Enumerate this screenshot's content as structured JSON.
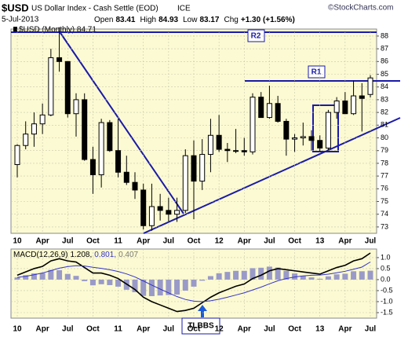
{
  "chart_data": [
    {
      "type": "candlestick",
      "title": "$USD",
      "subtitle": "US Dollar Index - Cash Settle (EOD)",
      "exchange": "ICE",
      "source": "©StockCharts.com",
      "date": "5-Jul-2013",
      "stats": [
        {
          "label": "Open",
          "value": "83.41"
        },
        {
          "label": "High",
          "value": "84.93"
        },
        {
          "label": "Low",
          "value": "83.17"
        },
        {
          "label": "Chg",
          "value": "+1.30 (+1.56%)"
        }
      ],
      "legend": "$USD (Monthly) 84.71",
      "annotations": [
        "R2",
        "R1"
      ],
      "categories": [
        "10",
        null,
        null,
        "Apr",
        null,
        null,
        "Jul",
        null,
        null,
        "Oct",
        null,
        null,
        "11",
        null,
        null,
        "Apr",
        null,
        null,
        "Jul",
        null,
        null,
        "Oct",
        null,
        null,
        "12",
        null,
        null,
        "Apr",
        null,
        null,
        "Jul",
        null,
        null,
        "Oct",
        null,
        null,
        "13",
        null,
        null,
        "Apr",
        null,
        null,
        "Jul"
      ],
      "open": [
        77.9,
        79.4,
        80.3,
        81.1,
        81.8,
        86.3,
        86.0,
        81.9,
        83.0,
        78.3,
        77.1,
        81.2,
        79.0,
        77.3,
        76.5,
        75.9,
        73.1,
        74.6,
        74.3,
        74.0,
        74.3,
        78.6,
        76.6,
        78.7,
        80.2,
        79.1,
        79.0,
        79.0,
        78.9,
        83.2,
        81.6,
        82.7,
        81.3,
        79.9,
        80.0,
        80.1,
        79.8,
        79.2,
        82.0,
        82.9,
        81.9,
        83.3,
        83.41
      ],
      "high": [
        79.5,
        81.3,
        82.0,
        82.7,
        87.0,
        88.7,
        86.0,
        83.5,
        83.5,
        79.3,
        81.5,
        81.4,
        81.5,
        78.6,
        77.3,
        76.4,
        76.4,
        75.6,
        75.3,
        75.3,
        79.1,
        79.8,
        79.9,
        81.5,
        81.8,
        79.6,
        80.7,
        80.0,
        83.5,
        83.6,
        84.1,
        83.3,
        81.5,
        80.3,
        81.2,
        80.6,
        80.2,
        82.2,
        83.2,
        83.6,
        84.5,
        84.3,
        84.93
      ],
      "low": [
        76.9,
        79.1,
        79.3,
        80.3,
        81.7,
        85.2,
        81.6,
        80.1,
        78.2,
        75.6,
        76.1,
        78.9,
        76.9,
        76.3,
        75.2,
        72.8,
        72.7,
        73.5,
        73.4,
        73.4,
        74.1,
        73.6,
        75.9,
        77.3,
        78.9,
        78.1,
        78.8,
        78.6,
        78.7,
        81.6,
        81.5,
        81.2,
        78.6,
        78.9,
        79.4,
        79.0,
        78.9,
        79.0,
        81.5,
        81.9,
        81.8,
        80.5,
        83.17
      ],
      "close": [
        79.4,
        80.3,
        81.1,
        81.8,
        86.3,
        86.0,
        81.9,
        83.0,
        78.3,
        77.1,
        81.2,
        79.0,
        77.3,
        76.5,
        75.9,
        73.1,
        74.6,
        74.3,
        74.0,
        74.3,
        78.6,
        76.6,
        78.7,
        80.2,
        79.1,
        79.0,
        79.0,
        78.9,
        83.2,
        81.6,
        82.7,
        81.3,
        79.9,
        80.0,
        80.1,
        79.8,
        79.2,
        82.0,
        82.9,
        81.9,
        83.3,
        83.1,
        84.71
      ],
      "ylim": [
        72.5,
        88.55
      ],
      "yticks": [
        73,
        74,
        75,
        76,
        77,
        78,
        79,
        80,
        81,
        82,
        83,
        84,
        85,
        86,
        87,
        88
      ],
      "grid": true
    },
    {
      "type": "macd",
      "legend": {
        "label": "MACD(12,26,9)",
        "items": [
          "1.208,",
          "0.801,",
          "0.407"
        ]
      },
      "annotations": [
        "TLBBS"
      ],
      "series": [
        {
          "name": "MACD",
          "color": "#000000",
          "values": [
            0.2,
            0.35,
            0.5,
            0.6,
            0.85,
            0.95,
            0.85,
            0.8,
            0.55,
            0.3,
            0.3,
            0.2,
            0.05,
            -0.2,
            -0.45,
            -0.8,
            -1.0,
            -1.15,
            -1.3,
            -1.45,
            -1.4,
            -1.3,
            -1.05,
            -0.8,
            -0.6,
            -0.45,
            -0.3,
            -0.2,
            0.05,
            0.2,
            0.4,
            0.5,
            0.45,
            0.4,
            0.35,
            0.3,
            0.25,
            0.4,
            0.55,
            0.65,
            0.85,
            0.95,
            1.208
          ]
        },
        {
          "name": "Signal",
          "color": "#3333cc",
          "values": [
            0.1,
            0.15,
            0.22,
            0.3,
            0.41,
            0.52,
            0.59,
            0.63,
            0.62,
            0.56,
            0.51,
            0.45,
            0.37,
            0.26,
            0.12,
            -0.06,
            -0.25,
            -0.43,
            -0.6,
            -0.77,
            -0.9,
            -0.98,
            -1.0,
            -0.96,
            -0.89,
            -0.8,
            -0.7,
            -0.6,
            -0.47,
            -0.34,
            -0.19,
            -0.05,
            0.05,
            0.12,
            0.17,
            0.2,
            0.21,
            0.25,
            0.31,
            0.38,
            0.47,
            0.57,
            0.801
          ]
        },
        {
          "name": "Histogram",
          "color": "#9a9ac8",
          "values": [
            0.1,
            0.2,
            0.28,
            0.3,
            0.44,
            0.43,
            0.26,
            0.17,
            -0.07,
            -0.26,
            -0.21,
            -0.25,
            -0.32,
            -0.46,
            -0.57,
            -0.74,
            -0.75,
            -0.72,
            -0.7,
            -0.68,
            -0.5,
            -0.32,
            -0.05,
            0.16,
            0.29,
            0.35,
            0.4,
            0.4,
            0.52,
            0.54,
            0.59,
            0.55,
            0.4,
            0.28,
            0.18,
            0.1,
            0.04,
            0.15,
            0.24,
            0.27,
            0.38,
            0.38,
            0.407
          ]
        }
      ],
      "ylim": [
        -1.75,
        1.39
      ],
      "yticks": [
        {
          "value": 1.0,
          "label": "1.0"
        },
        0.5,
        {
          "value": 0.0,
          "label": "0.0"
        },
        -0.5,
        {
          "value": -1.0,
          "label": "-1.0"
        },
        -1.5
      ],
      "grid": true
    }
  ]
}
